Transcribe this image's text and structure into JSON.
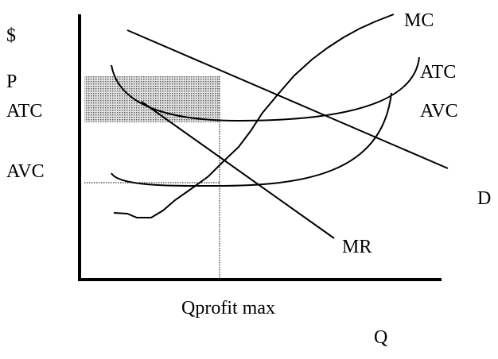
{
  "axis_labels": {
    "y": "$",
    "x": "Q",
    "price": "P",
    "atc_level": "ATC",
    "avc_level": "AVC",
    "quantity": "Qprofit max"
  },
  "curves": {
    "mc": "MC",
    "atc": "ATC",
    "avc": "AVC",
    "demand": "D",
    "mr": "MR"
  }
}
